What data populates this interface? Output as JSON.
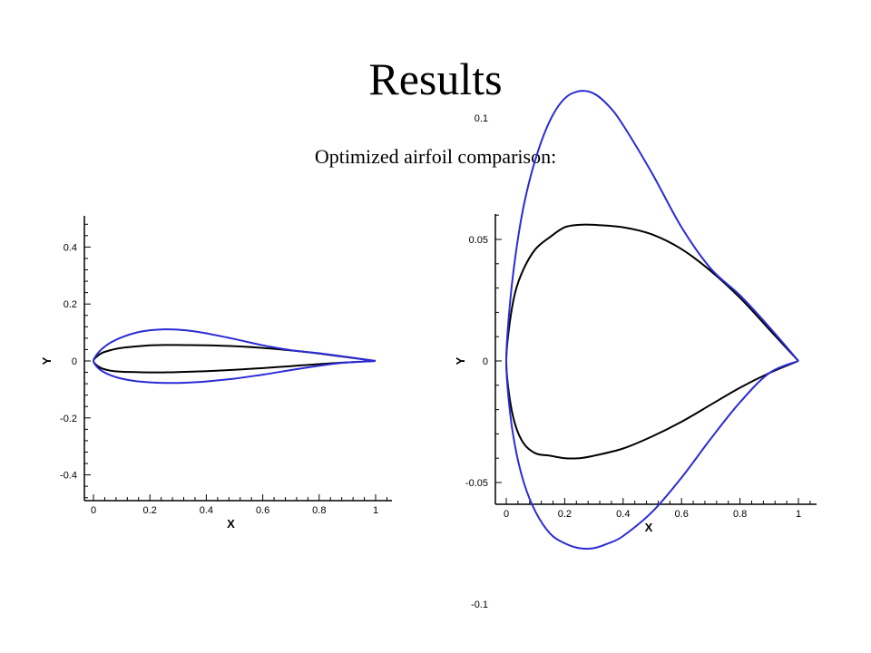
{
  "slide": {
    "title": "Results",
    "subtitle": "Optimized airfoil comparison:"
  },
  "colors": {
    "baseline": "#000000",
    "optimized": "#2b2bd6"
  },
  "chart_data": [
    {
      "type": "line",
      "xlabel": "X",
      "ylabel": "Y",
      "xlim": [
        -0.03,
        1.05
      ],
      "ylim": [
        -0.5,
        0.5
      ],
      "xticks": [
        "0",
        "0.2",
        "0.4",
        "0.6",
        "0.8",
        "1"
      ],
      "yticks": [
        "0.4",
        "0.2",
        "0",
        "-0.2",
        "-0.4"
      ],
      "grid": false,
      "series": [
        {
          "color": "#000000",
          "x": [
            1.0,
            0.9,
            0.8,
            0.7,
            0.6,
            0.5,
            0.4,
            0.3,
            0.25,
            0.2,
            0.15,
            0.1,
            0.06,
            0.03,
            0.01,
            0.0,
            0.01,
            0.03,
            0.06,
            0.1,
            0.15,
            0.2,
            0.25,
            0.3,
            0.4,
            0.5,
            0.6,
            0.7,
            0.8,
            0.9,
            1.0
          ],
          "y": [
            0.0,
            0.013,
            0.026,
            0.037,
            0.046,
            0.052,
            0.055,
            0.056,
            0.056,
            0.055,
            0.051,
            0.046,
            0.038,
            0.028,
            0.014,
            0.0,
            -0.014,
            -0.026,
            -0.034,
            -0.038,
            -0.039,
            -0.04,
            -0.04,
            -0.039,
            -0.036,
            -0.031,
            -0.025,
            -0.018,
            -0.011,
            -0.005,
            0.0
          ]
        },
        {
          "color": "#2b2bd6",
          "x": [
            1.0,
            0.9,
            0.8,
            0.7,
            0.6,
            0.5,
            0.4,
            0.35,
            0.3,
            0.25,
            0.2,
            0.15,
            0.1,
            0.06,
            0.03,
            0.01,
            0.0,
            0.01,
            0.03,
            0.06,
            0.1,
            0.15,
            0.2,
            0.25,
            0.3,
            0.35,
            0.4,
            0.5,
            0.6,
            0.7,
            0.8,
            0.9,
            1.0
          ],
          "y": [
            0.0,
            0.014,
            0.027,
            0.038,
            0.055,
            0.077,
            0.097,
            0.105,
            0.11,
            0.111,
            0.108,
            0.099,
            0.083,
            0.064,
            0.042,
            0.02,
            0.0,
            -0.018,
            -0.035,
            -0.05,
            -0.062,
            -0.071,
            -0.075,
            -0.077,
            -0.077,
            -0.075,
            -0.072,
            -0.062,
            -0.048,
            -0.032,
            -0.017,
            -0.005,
            0.0
          ]
        }
      ]
    },
    {
      "type": "line",
      "xlabel": "X",
      "ylabel": "Y",
      "xlim": [
        -0.03,
        1.07
      ],
      "ylim": [
        -0.12,
        0.12
      ],
      "xticks": [
        "0",
        "0.2",
        "0.4",
        "0.6",
        "0.8",
        "1"
      ],
      "yticks": [
        "0.1",
        "0.05",
        "0",
        "-0.05",
        "-0.1"
      ],
      "grid": false,
      "series": [
        {
          "color": "#000000",
          "x": [
            1.0,
            0.9,
            0.8,
            0.7,
            0.6,
            0.5,
            0.4,
            0.3,
            0.25,
            0.2,
            0.15,
            0.1,
            0.06,
            0.03,
            0.01,
            0.0,
            0.01,
            0.03,
            0.06,
            0.1,
            0.15,
            0.2,
            0.25,
            0.3,
            0.4,
            0.5,
            0.6,
            0.7,
            0.8,
            0.9,
            1.0
          ],
          "y": [
            0.0,
            0.013,
            0.026,
            0.037,
            0.046,
            0.052,
            0.055,
            0.056,
            0.056,
            0.055,
            0.051,
            0.046,
            0.038,
            0.028,
            0.014,
            0.0,
            -0.014,
            -0.026,
            -0.034,
            -0.038,
            -0.039,
            -0.04,
            -0.04,
            -0.039,
            -0.036,
            -0.031,
            -0.025,
            -0.018,
            -0.011,
            -0.005,
            0.0
          ]
        },
        {
          "color": "#2b2bd6",
          "x": [
            1.0,
            0.9,
            0.8,
            0.7,
            0.6,
            0.5,
            0.4,
            0.35,
            0.3,
            0.25,
            0.2,
            0.15,
            0.1,
            0.06,
            0.03,
            0.01,
            0.0,
            0.01,
            0.03,
            0.06,
            0.1,
            0.15,
            0.2,
            0.25,
            0.3,
            0.35,
            0.4,
            0.5,
            0.6,
            0.7,
            0.8,
            0.9,
            1.0
          ],
          "y": [
            0.0,
            0.014,
            0.027,
            0.038,
            0.055,
            0.077,
            0.097,
            0.105,
            0.11,
            0.111,
            0.108,
            0.099,
            0.083,
            0.064,
            0.042,
            0.02,
            0.0,
            -0.018,
            -0.035,
            -0.05,
            -0.062,
            -0.071,
            -0.075,
            -0.077,
            -0.077,
            -0.075,
            -0.072,
            -0.062,
            -0.048,
            -0.032,
            -0.017,
            -0.005,
            0.0
          ]
        }
      ]
    }
  ]
}
